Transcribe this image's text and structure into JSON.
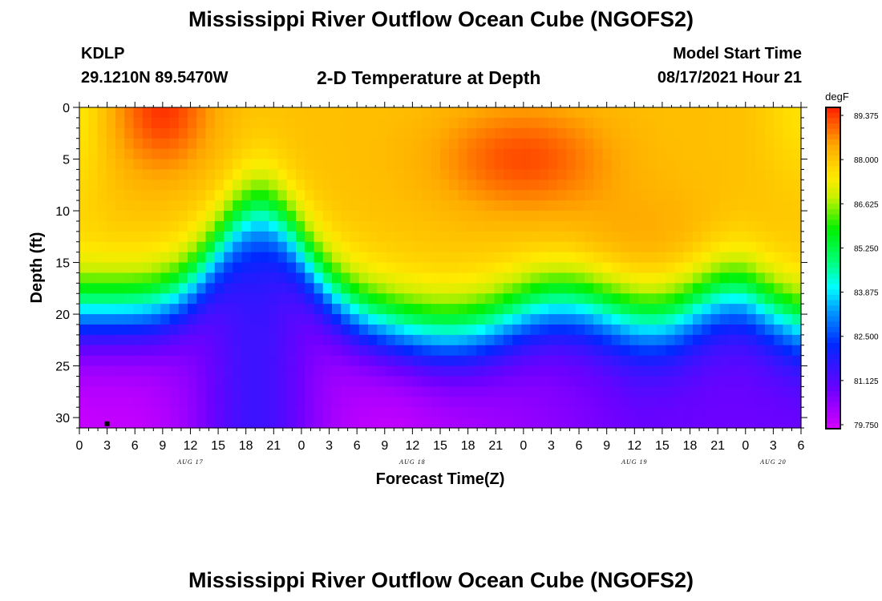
{
  "header": {
    "title": "Mississippi River Outflow Ocean Cube (NGOFS2)",
    "station": "KDLP",
    "coords": "29.1210N  89.5470W",
    "subtitle": "2-D Temperature at Depth",
    "start_label": "Model Start Time",
    "start_value": "08/17/2021 Hour 21"
  },
  "footer": {
    "title": "Mississippi River Outflow Ocean Cube (NGOFS2)"
  },
  "chart_data": {
    "type": "heatmap",
    "title": "2-D Temperature at Depth",
    "xlabel": "Forecast Time(Z)",
    "ylabel": "Depth (ft)",
    "x_tick_labels": [
      "0",
      "3",
      "6",
      "9",
      "12",
      "15",
      "18",
      "21",
      "0",
      "3",
      "6",
      "9",
      "12",
      "15",
      "18",
      "21",
      "0",
      "3",
      "6",
      "9",
      "12",
      "15",
      "18",
      "21",
      "0",
      "3",
      "6"
    ],
    "date_labels": [
      {
        "label": "AUG 17",
        "hour": 12
      },
      {
        "label": "AUG 18",
        "hour": 36
      },
      {
        "label": "AUG 19",
        "hour": 60
      },
      {
        "label": "AUG 20",
        "hour": 75
      }
    ],
    "xlim_hours": [
      0,
      78
    ],
    "ylim_depth_ft": [
      0,
      31
    ],
    "y_ticks": [
      0,
      5,
      10,
      15,
      20,
      25,
      30
    ],
    "colorbar": {
      "unit": "degF",
      "labels": [
        "89.375",
        "88.000",
        "86.625",
        "85.250",
        "83.875",
        "82.500",
        "81.125",
        "79.750"
      ],
      "range": [
        79.75,
        89.375
      ]
    },
    "grid": false,
    "point_marker": {
      "hour": 3,
      "depth_ft": 30.6
    }
  }
}
